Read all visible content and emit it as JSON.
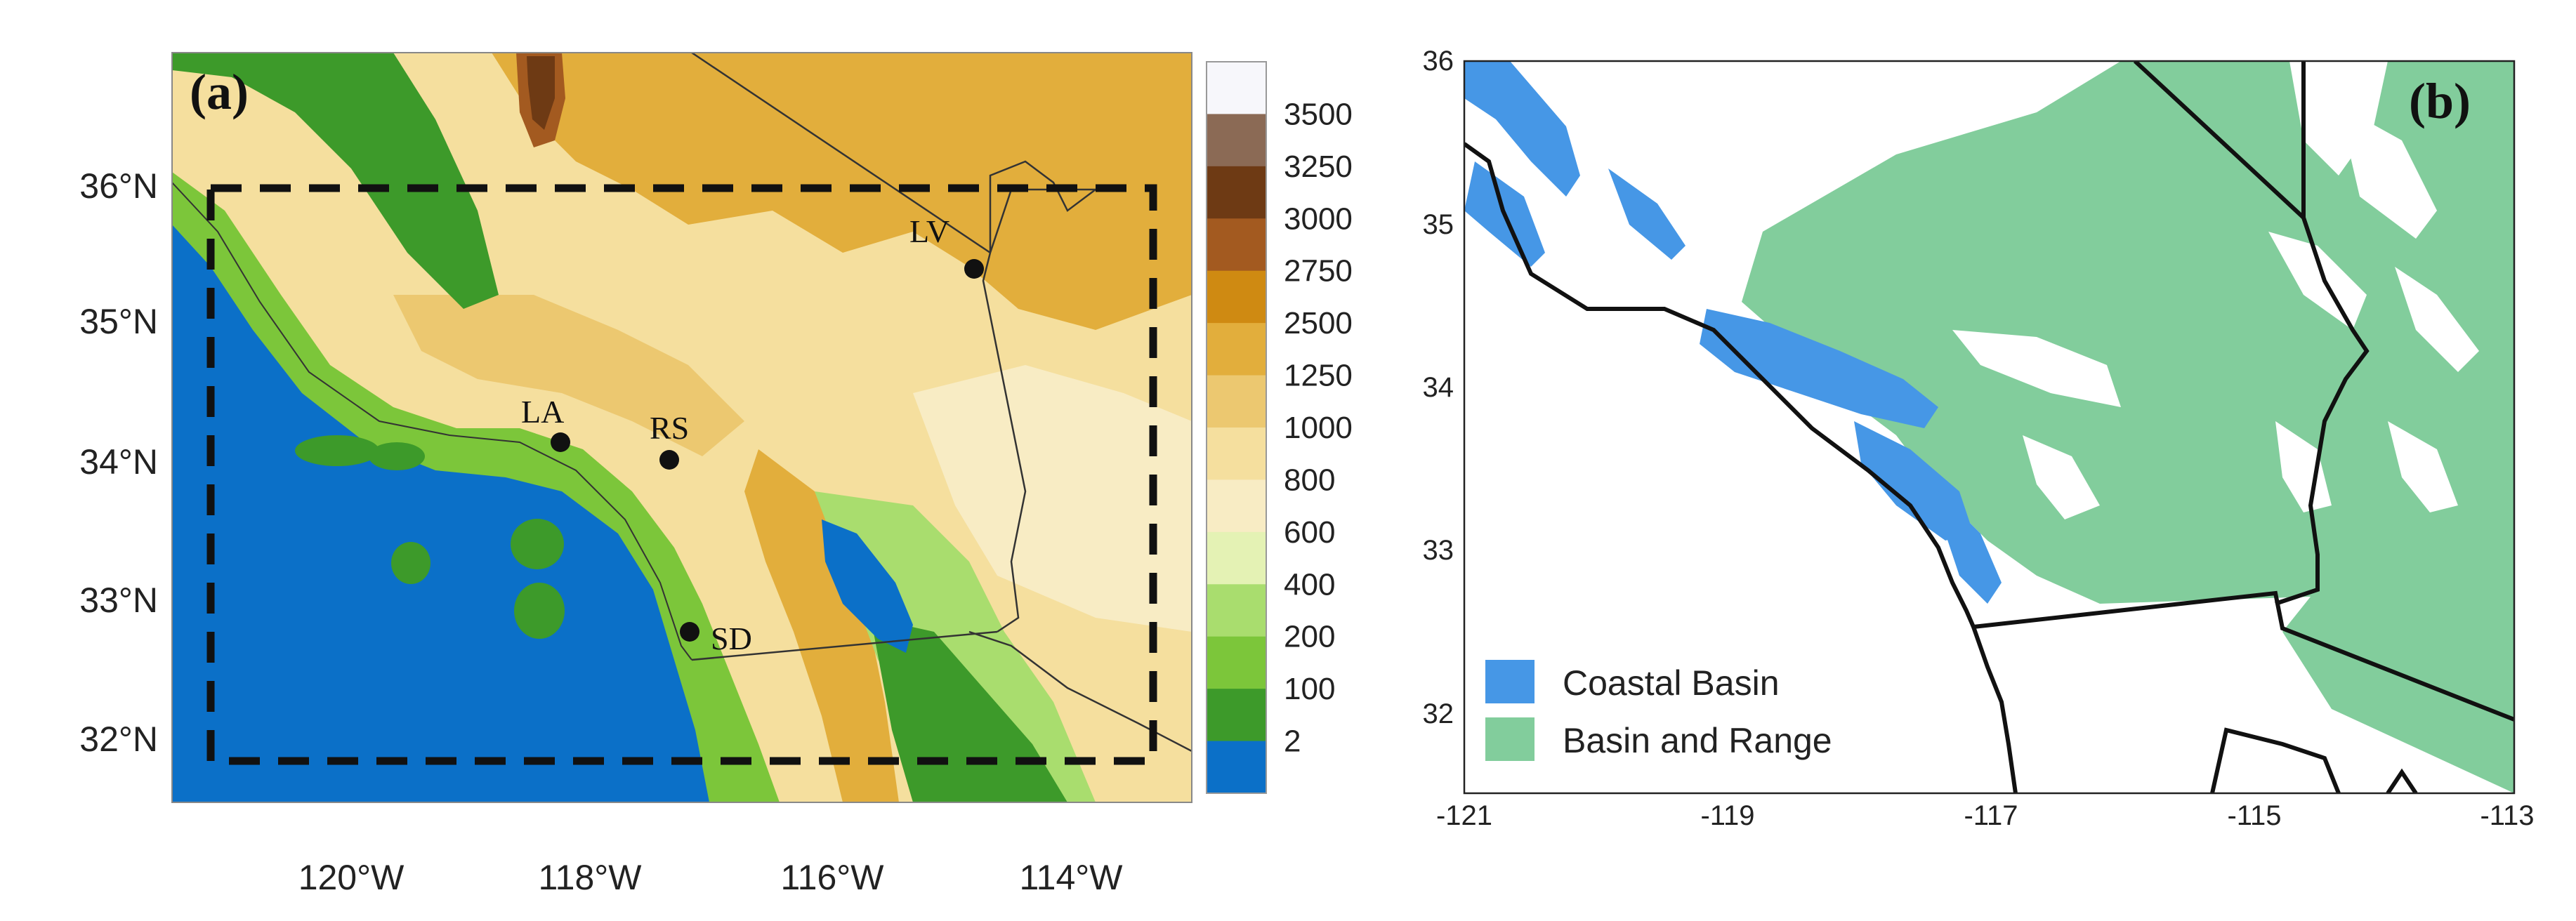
{
  "panel_a": {
    "letter": "(a)",
    "lat_ticks": [
      "36°N",
      "35°N",
      "34°N",
      "33°N",
      "32°N"
    ],
    "lon_ticks": [
      "120°W",
      "118°W",
      "116°W",
      "114°W"
    ],
    "cities": [
      {
        "label": "LV"
      },
      {
        "label": "LA"
      },
      {
        "label": "RS"
      },
      {
        "label": "SD"
      }
    ],
    "colorbar": {
      "levels": [
        "3500",
        "3250",
        "3000",
        "2750",
        "2500",
        "1250",
        "1000",
        "800",
        "600",
        "400",
        "200",
        "100",
        "2"
      ],
      "colors": [
        "#f7f7fb",
        "#8b6a55",
        "#6e3a14",
        "#a35a20",
        "#cf8a12",
        "#e2ae3c",
        "#ecc870",
        "#f5df9e",
        "#f8ecc4",
        "#e4f2b4",
        "#a9dd6e",
        "#7cc63a",
        "#3d9a2a",
        "#0b70c8"
      ]
    },
    "colors": {
      "ocean": "#0b70c8",
      "lowland": "#3d9a2a",
      "green2": "#7cc63a",
      "green3": "#a9dd6e",
      "tan1": "#f8ecc4",
      "tan2": "#f5df9e",
      "tan3": "#ecc870",
      "tan4": "#e2ae3c",
      "brown": "#a35a20",
      "darkbrown": "#6e3a14"
    }
  },
  "panel_b": {
    "letter": "(b)",
    "lat_ticks": [
      "36",
      "35",
      "34",
      "33",
      "32"
    ],
    "lon_ticks": [
      "-121",
      "-119",
      "-117",
      "-115",
      "-113"
    ],
    "legend": [
      {
        "label": "Coastal Basin",
        "color": "#4697e6"
      },
      {
        "label": "Basin and Range",
        "color": "#82cd9c"
      }
    ]
  }
}
